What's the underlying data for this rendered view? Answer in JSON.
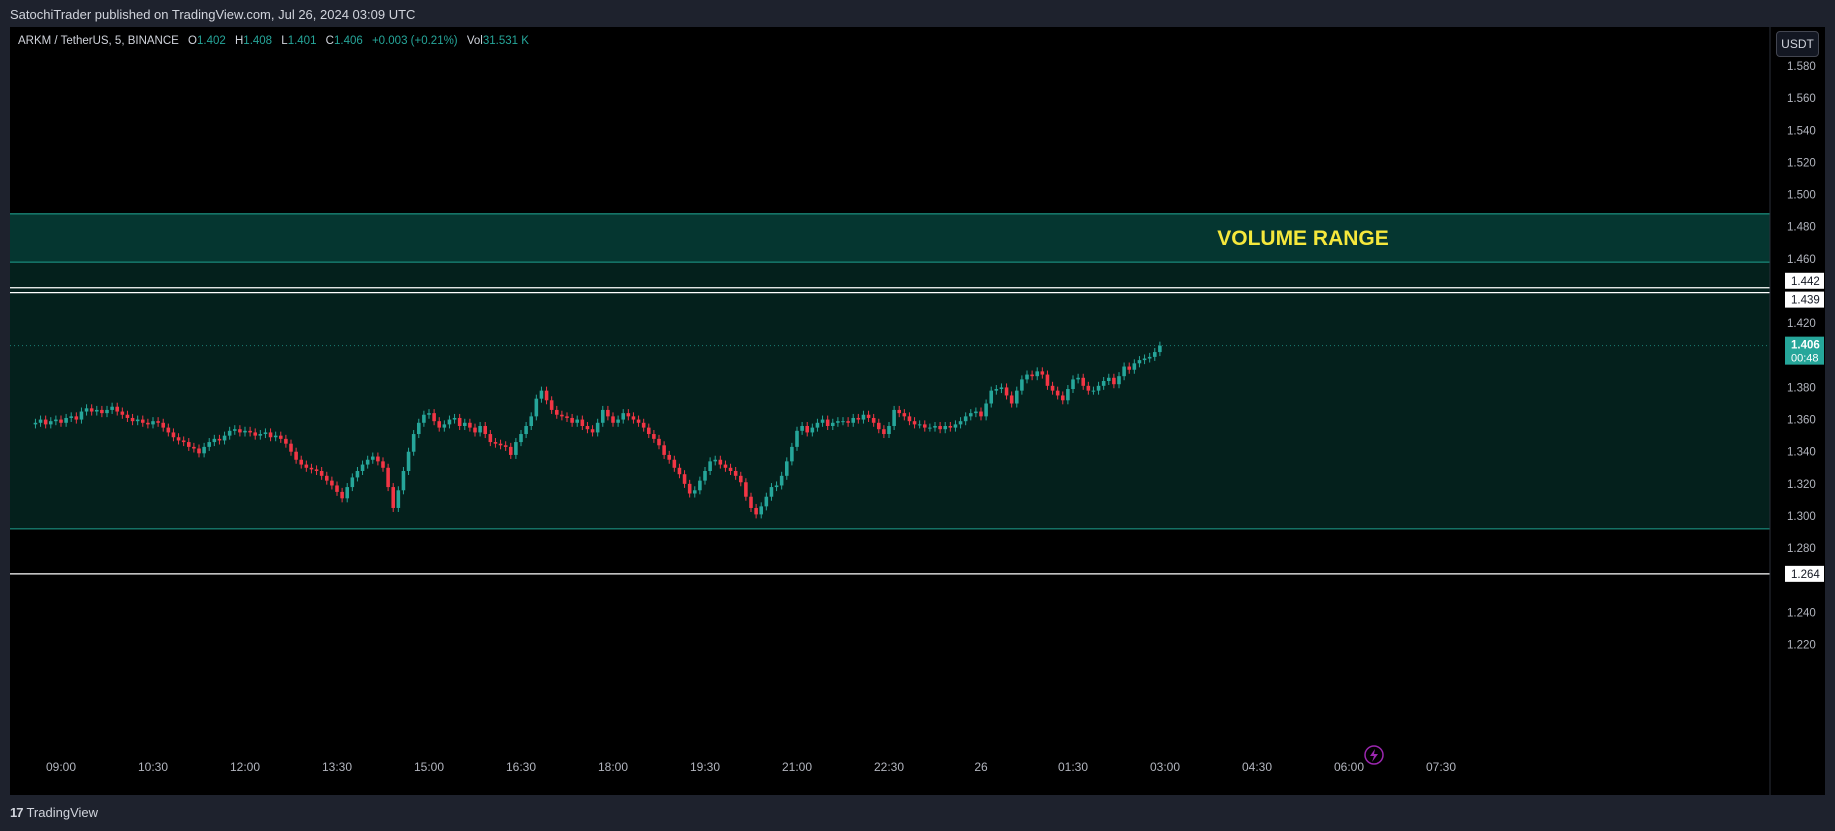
{
  "header": {
    "published_text": "SatochiTrader published on TradingView.com, Jul 26, 2024 03:09 UTC"
  },
  "legend": {
    "symbol": "ARKM / TetherUS, 5, BINANCE",
    "open_label": "O",
    "open": "1.402",
    "high_label": "H",
    "high": "1.408",
    "low_label": "L",
    "low": "1.401",
    "close_label": "C",
    "close": "1.406",
    "change": "+0.003 (+0.21%)",
    "vol_label": "Vol",
    "vol": "31.531 K"
  },
  "currency_button": "USDT",
  "footer": {
    "logo_text": "TradingView",
    "logo_mark": "17"
  },
  "colors": {
    "up": "#26a69a",
    "down": "#f23645",
    "zone": "#04201c",
    "band": "#053630",
    "annotation": "#f5e83c",
    "frame_bg": "#000000"
  },
  "chart_data": {
    "type": "candlestick",
    "symbol": "ARKM/USDT",
    "timeframe": "5",
    "exchange": "BINANCE",
    "ylim": [
      1.21,
      1.6
    ],
    "y_ticks": [
      "1.580",
      "1.560",
      "1.540",
      "1.520",
      "1.500",
      "1.480",
      "1.460",
      "1.420",
      "1.380",
      "1.360",
      "1.340",
      "1.320",
      "1.300",
      "1.280",
      "1.240",
      "1.220"
    ],
    "x_ticks": [
      "09:00",
      "10:30",
      "12:00",
      "13:30",
      "15:00",
      "16:30",
      "18:00",
      "19:30",
      "21:00",
      "22:30",
      "26",
      "01:30",
      "03:00",
      "04:30",
      "06:00",
      "07:30"
    ],
    "zones": [
      {
        "name": "range",
        "from": 1.292,
        "to": 1.488
      },
      {
        "name": "band",
        "from": 1.458,
        "to": 1.488
      }
    ],
    "annotation": "VOLUME RANGE",
    "horizontal_lines": [
      {
        "value": 1.442,
        "label": "1.442"
      },
      {
        "value": 1.439,
        "label": "1.439"
      },
      {
        "value": 1.264,
        "label": "1.264"
      }
    ],
    "last_price": {
      "value": 1.406,
      "label": "1.406",
      "countdown": "00:48"
    },
    "closes": [
      1.358,
      1.36,
      1.357,
      1.359,
      1.36,
      1.358,
      1.361,
      1.362,
      1.36,
      1.365,
      1.367,
      1.365,
      1.366,
      1.364,
      1.366,
      1.368,
      1.365,
      1.363,
      1.361,
      1.359,
      1.36,
      1.358,
      1.357,
      1.359,
      1.358,
      1.355,
      1.352,
      1.349,
      1.347,
      1.346,
      1.343,
      1.342,
      1.339,
      1.343,
      1.346,
      1.348,
      1.347,
      1.35,
      1.353,
      1.354,
      1.352,
      1.353,
      1.352,
      1.35,
      1.351,
      1.352,
      1.349,
      1.35,
      1.348,
      1.345,
      1.34,
      1.335,
      1.332,
      1.33,
      1.329,
      1.328,
      1.325,
      1.322,
      1.319,
      1.315,
      1.311,
      1.318,
      1.324,
      1.328,
      1.332,
      1.335,
      1.337,
      1.334,
      1.33,
      1.318,
      1.305,
      1.316,
      1.328,
      1.34,
      1.351,
      1.358,
      1.363,
      1.364,
      1.359,
      1.355,
      1.357,
      1.36,
      1.361,
      1.356,
      1.358,
      1.355,
      1.352,
      1.356,
      1.351,
      1.346,
      1.345,
      1.344,
      1.343,
      1.338,
      1.346,
      1.351,
      1.356,
      1.362,
      1.373,
      1.378,
      1.372,
      1.366,
      1.363,
      1.362,
      1.361,
      1.358,
      1.36,
      1.356,
      1.354,
      1.352,
      1.358,
      1.366,
      1.362,
      1.358,
      1.36,
      1.364,
      1.362,
      1.36,
      1.358,
      1.355,
      1.351,
      1.348,
      1.344,
      1.338,
      1.335,
      1.33,
      1.326,
      1.32,
      1.314,
      1.316,
      1.322,
      1.328,
      1.334,
      1.335,
      1.332,
      1.33,
      1.328,
      1.325,
      1.321,
      1.312,
      1.305,
      1.301,
      1.306,
      1.312,
      1.318,
      1.319,
      1.325,
      1.334,
      1.343,
      1.353,
      1.356,
      1.352,
      1.355,
      1.358,
      1.36,
      1.356,
      1.358,
      1.359,
      1.359,
      1.358,
      1.361,
      1.36,
      1.363,
      1.361,
      1.358,
      1.354,
      1.351,
      1.356,
      1.366,
      1.364,
      1.362,
      1.359,
      1.357,
      1.357,
      1.355,
      1.355,
      1.356,
      1.354,
      1.356,
      1.355,
      1.357,
      1.359,
      1.362,
      1.364,
      1.365,
      1.362,
      1.37,
      1.378,
      1.379,
      1.38,
      1.375,
      1.37,
      1.378,
      1.385,
      1.388,
      1.387,
      1.39,
      1.388,
      1.381,
      1.378,
      1.375,
      1.372,
      1.379,
      1.385,
      1.386,
      1.381,
      1.378,
      1.378,
      1.381,
      1.384,
      1.386,
      1.382,
      1.387,
      1.393,
      1.391,
      1.395,
      1.397,
      1.398,
      1.399,
      1.402,
      1.406
    ],
    "x_start": "08:35",
    "interval_minutes": 5
  }
}
